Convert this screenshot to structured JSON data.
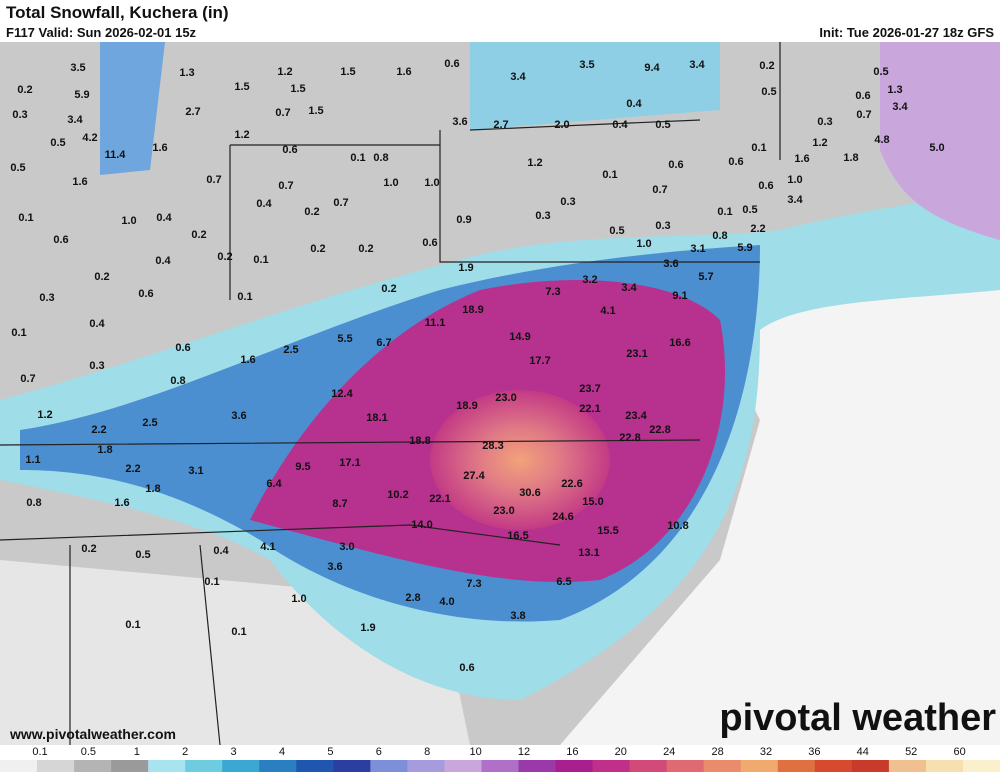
{
  "header": {
    "title": "Total Snowfall, Kuchera (in)",
    "valid": "F117 Valid: Sun 2026-02-01 15z",
    "init": "Init: Tue 2026-01-27 18z GFS"
  },
  "map": {
    "labels": [
      "3.5",
      "5.9",
      "0.2",
      "0.3",
      "3.4",
      "0.5",
      "4.2",
      "11.4",
      "0.5",
      "1.6",
      "1.6",
      "1.3",
      "2.7",
      "1.5",
      "1.2",
      "1.2",
      "1.5",
      "1.5",
      "1.6",
      "0.7",
      "1.5",
      "0.6",
      "3.4",
      "3.5",
      "9.4",
      "3.4",
      "0.2",
      "0.5",
      "0.5",
      "1.3",
      "0.6",
      "3.4",
      "0.7",
      "0.3",
      "4.8",
      "1.2",
      "5.0",
      "1.8",
      "1.6",
      "0.1",
      "0.6",
      "1.0",
      "0.6",
      "3.4",
      "0.1",
      "0.5",
      "2.2",
      "5.9",
      "3.1",
      "3.6",
      "5.7",
      "9.1",
      "3.4",
      "3.2",
      "7.3",
      "4.1",
      "16.6",
      "23.1",
      "0.4",
      "0.5",
      "0.4",
      "2.0",
      "2.7",
      "3.6",
      "1.2",
      "0.6",
      "0.1",
      "0.7",
      "0.3",
      "0.3",
      "0.5",
      "0.3",
      "1.0",
      "0.8",
      "0.9",
      "0.6",
      "1.9",
      "1.0",
      "1.0",
      "0.8",
      "0.1",
      "0.6",
      "0.7",
      "0.7",
      "0.4",
      "0.7",
      "0.2",
      "0.2",
      "0.2",
      "0.2",
      "0.1",
      "0.2",
      "1.0",
      "0.4",
      "0.4",
      "0.6",
      "0.1",
      "0.2",
      "0.6",
      "0.1",
      "0.2",
      "0.3",
      "0.4",
      "0.1",
      "0.3",
      "0.6",
      "0.8",
      "1.6",
      "2.5",
      "5.5",
      "6.7",
      "11.1",
      "18.9",
      "14.9",
      "17.7",
      "23.7",
      "22.1",
      "23.4",
      "22.8",
      "22.8",
      "23.0",
      "18.9",
      "18.1",
      "12.4",
      "3.6",
      "2.5",
      "2.2",
      "1.2",
      "0.7",
      "1.8",
      "1.1",
      "2.2",
      "3.1",
      "1.8",
      "1.6",
      "0.8",
      "9.5",
      "17.1",
      "18.8",
      "28.3",
      "27.4",
      "22.6",
      "6.4",
      "8.7",
      "10.2",
      "22.1",
      "30.6",
      "15.0",
      "23.0",
      "24.6",
      "14.0",
      "16.5",
      "15.5",
      "10.8",
      "13.1",
      "0.2",
      "0.5",
      "0.4",
      "4.1",
      "3.0",
      "3.6",
      "0.1",
      "7.3",
      "6.5",
      "2.8",
      "4.0",
      "1.0",
      "3.8",
      "0.1",
      "0.1",
      "1.9",
      "0.6"
    ]
  },
  "website": "www.pivotalweather.com",
  "watermark": "pivotal weather",
  "legend": {
    "ticks": [
      "0.1",
      "0.5",
      "1",
      "2",
      "3",
      "4",
      "5",
      "6",
      "8",
      "10",
      "12",
      "16",
      "20",
      "24",
      "28",
      "32",
      "36",
      "44",
      "52",
      "60"
    ]
  }
}
